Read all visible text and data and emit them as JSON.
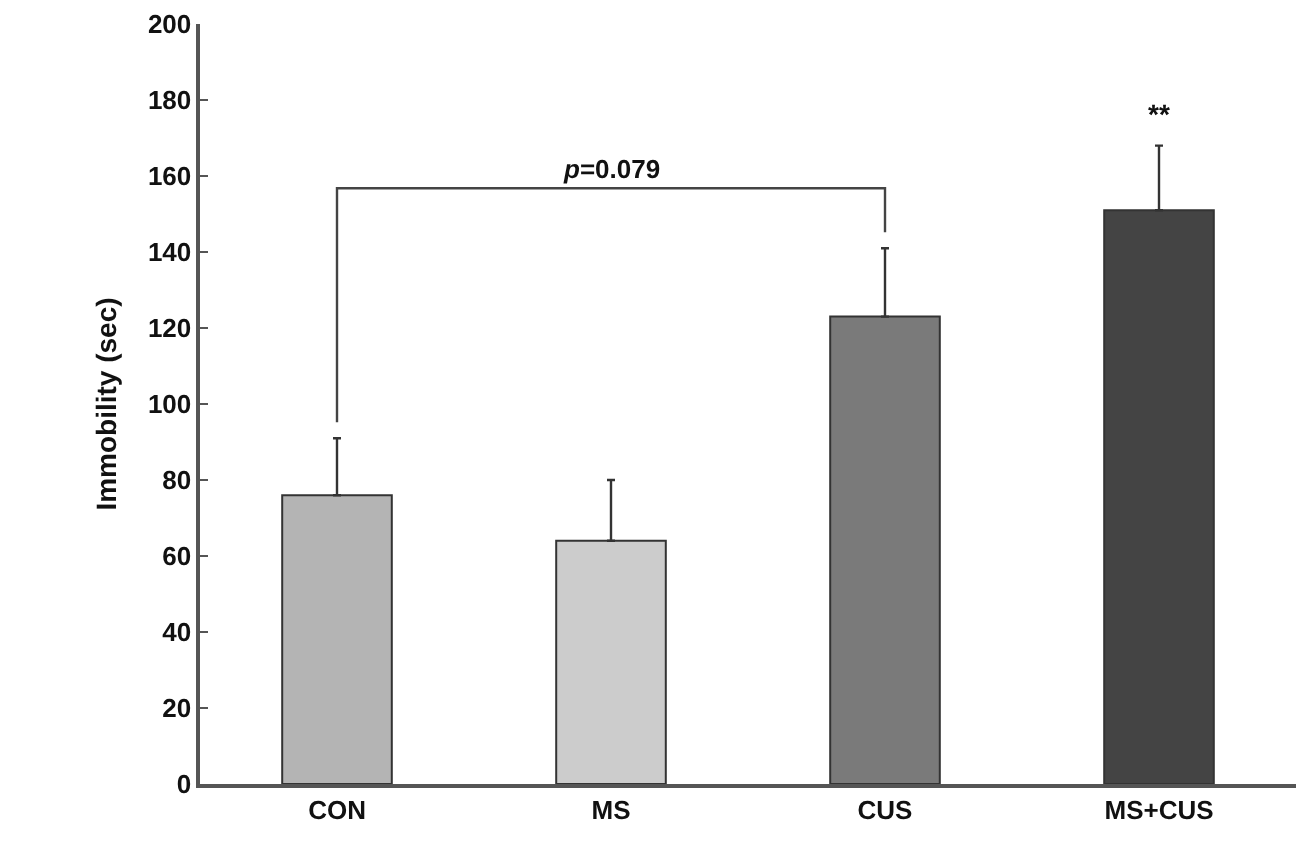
{
  "chart_data": {
    "type": "bar",
    "ylabel": "Immobility (sec)",
    "categories": [
      "CON",
      "MS",
      "CUS",
      "MS+CUS"
    ],
    "values": [
      76,
      64,
      123,
      151
    ],
    "colors": [
      "#b4b4b4",
      "#cccccc",
      "#7a7a7a",
      "#444444"
    ],
    "errors": [
      [
        76,
        91
      ],
      [
        64,
        80
      ],
      [
        123,
        141
      ],
      [
        151,
        168
      ]
    ],
    "ylim": [
      0,
      200
    ],
    "yticks": [
      0,
      20,
      40,
      60,
      80,
      100,
      120,
      140,
      160,
      180,
      200
    ],
    "annotations": [
      "p=0.079",
      {
        "text": "**",
        "x": "MS+CUS",
        "y": 168
      }
    ]
  }
}
